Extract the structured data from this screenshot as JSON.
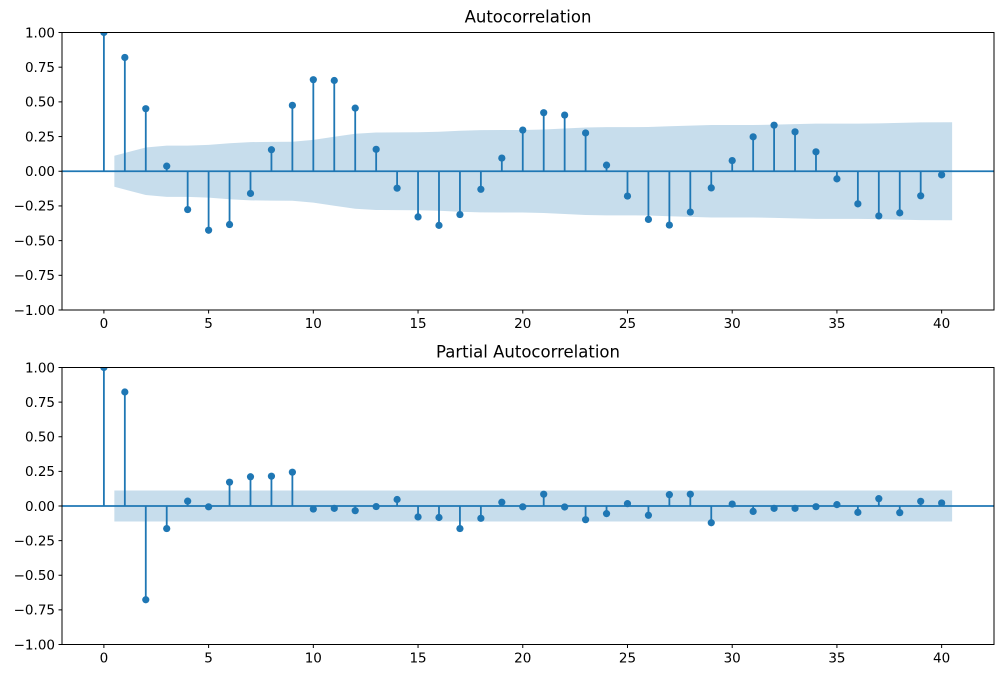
{
  "figure": {
    "background": "#ffffff",
    "accent_color": "#1f77b4",
    "band_fill": "rgba(31,119,180,0.25)",
    "spine_color": "#000000",
    "label_color": "#000000"
  },
  "chart_data": [
    {
      "type": "stem",
      "title": "Autocorrelation",
      "xlabel": "",
      "ylabel": "",
      "grid": false,
      "legend": null,
      "xlim": [
        -2,
        42.5
      ],
      "ylim": [
        -1,
        1
      ],
      "lags": [
        0,
        1,
        2,
        3,
        4,
        5,
        6,
        7,
        8,
        9,
        10,
        11,
        12,
        13,
        14,
        15,
        16,
        17,
        18,
        19,
        20,
        21,
        22,
        23,
        24,
        25,
        26,
        27,
        28,
        29,
        30,
        31,
        32,
        33,
        34,
        35,
        36,
        37,
        38,
        39,
        40
      ],
      "values": [
        1.0,
        0.82,
        0.451,
        0.037,
        -0.276,
        -0.425,
        -0.384,
        -0.16,
        0.155,
        0.475,
        0.66,
        0.654,
        0.455,
        0.158,
        -0.122,
        -0.329,
        -0.39,
        -0.312,
        -0.13,
        0.095,
        0.297,
        0.422,
        0.405,
        0.276,
        0.044,
        -0.179,
        -0.347,
        -0.388,
        -0.294,
        -0.12,
        0.077,
        0.248,
        0.332,
        0.284,
        0.14,
        -0.055,
        -0.235,
        -0.322,
        -0.3,
        -0.177,
        -0.026
      ],
      "conf_band": {
        "x": [
          0.5,
          2,
          3,
          4,
          5,
          6,
          7,
          8,
          9,
          10,
          11,
          12,
          13,
          14,
          15,
          16,
          17,
          18,
          19,
          20,
          21,
          22,
          23,
          24,
          25,
          26,
          27,
          28,
          29,
          30,
          31,
          32,
          33,
          34,
          35,
          36,
          37,
          38,
          39,
          40.5
        ],
        "half_width": [
          0.112,
          0.171,
          0.185,
          0.185,
          0.19,
          0.202,
          0.21,
          0.212,
          0.213,
          0.226,
          0.249,
          0.27,
          0.279,
          0.28,
          0.281,
          0.285,
          0.292,
          0.296,
          0.297,
          0.297,
          0.301,
          0.308,
          0.315,
          0.318,
          0.318,
          0.319,
          0.324,
          0.329,
          0.333,
          0.333,
          0.333,
          0.336,
          0.34,
          0.343,
          0.343,
          0.343,
          0.345,
          0.349,
          0.352,
          0.353
        ]
      },
      "xticks": [
        {
          "v": 0,
          "label": "0"
        },
        {
          "v": 5,
          "label": "5"
        },
        {
          "v": 10,
          "label": "10"
        },
        {
          "v": 15,
          "label": "15"
        },
        {
          "v": 20,
          "label": "20"
        },
        {
          "v": 25,
          "label": "25"
        },
        {
          "v": 30,
          "label": "30"
        },
        {
          "v": 35,
          "label": "35"
        },
        {
          "v": 40,
          "label": "40"
        }
      ],
      "yticks": [
        {
          "v": 1.0,
          "label": "1.00"
        },
        {
          "v": 0.75,
          "label": "0.75"
        },
        {
          "v": 0.5,
          "label": "0.50"
        },
        {
          "v": 0.25,
          "label": "0.25"
        },
        {
          "v": 0.0,
          "label": "0.00"
        },
        {
          "v": -0.25,
          "label": "−0.25"
        },
        {
          "v": -0.5,
          "label": "−0.50"
        },
        {
          "v": -0.75,
          "label": "−0.75"
        },
        {
          "v": -1.0,
          "label": "−1.00"
        }
      ]
    },
    {
      "type": "stem",
      "title": "Partial Autocorrelation",
      "xlabel": "",
      "ylabel": "",
      "grid": false,
      "legend": null,
      "xlim": [
        -2,
        42.5
      ],
      "ylim": [
        -1,
        1
      ],
      "lags": [
        0,
        1,
        2,
        3,
        4,
        5,
        6,
        7,
        8,
        9,
        10,
        11,
        12,
        13,
        14,
        15,
        16,
        17,
        18,
        19,
        20,
        21,
        22,
        23,
        24,
        25,
        26,
        27,
        28,
        29,
        30,
        31,
        32,
        33,
        34,
        35,
        36,
        37,
        38,
        39,
        40
      ],
      "values": [
        1.0,
        0.823,
        -0.677,
        -0.163,
        0.035,
        -0.006,
        0.172,
        0.211,
        0.215,
        0.244,
        -0.022,
        -0.017,
        -0.034,
        -0.004,
        0.047,
        -0.079,
        -0.083,
        -0.163,
        -0.089,
        0.027,
        -0.006,
        0.085,
        -0.007,
        -0.099,
        -0.055,
        0.017,
        -0.067,
        0.082,
        0.085,
        -0.121,
        0.014,
        -0.039,
        -0.017,
        -0.017,
        -0.005,
        0.01,
        -0.046,
        0.053,
        -0.048,
        0.034,
        0.022
      ],
      "conf_band": {
        "x": [
          0.5,
          2,
          3,
          4,
          5,
          6,
          7,
          8,
          9,
          10,
          11,
          12,
          13,
          14,
          15,
          16,
          17,
          18,
          19,
          20,
          21,
          22,
          23,
          24,
          25,
          26,
          27,
          28,
          29,
          30,
          31,
          32,
          33,
          34,
          35,
          36,
          37,
          38,
          39,
          40.5
        ],
        "half_width": 0.112
      },
      "xticks": [
        {
          "v": 0,
          "label": "0"
        },
        {
          "v": 5,
          "label": "5"
        },
        {
          "v": 10,
          "label": "10"
        },
        {
          "v": 15,
          "label": "15"
        },
        {
          "v": 20,
          "label": "20"
        },
        {
          "v": 25,
          "label": "25"
        },
        {
          "v": 30,
          "label": "30"
        },
        {
          "v": 35,
          "label": "35"
        },
        {
          "v": 40,
          "label": "40"
        }
      ],
      "yticks": [
        {
          "v": 1.0,
          "label": "1.00"
        },
        {
          "v": 0.75,
          "label": "0.75"
        },
        {
          "v": 0.5,
          "label": "0.50"
        },
        {
          "v": 0.25,
          "label": "0.25"
        },
        {
          "v": 0.0,
          "label": "0.00"
        },
        {
          "v": -0.25,
          "label": "−0.25"
        },
        {
          "v": -0.5,
          "label": "−0.50"
        },
        {
          "v": -0.75,
          "label": "−0.75"
        },
        {
          "v": -1.0,
          "label": "−1.00"
        }
      ]
    }
  ]
}
